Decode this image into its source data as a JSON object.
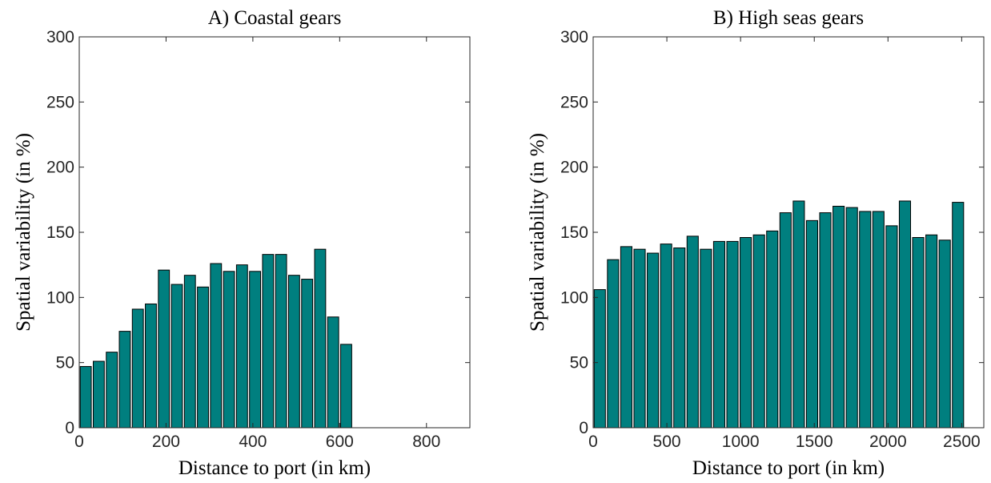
{
  "chart_data": [
    {
      "type": "bar",
      "title": "A) Coastal gears",
      "x_label": "Distance to port (in km)",
      "y_label": "Spatial variability (in %)",
      "x": [
        15,
        45,
        75,
        105,
        135,
        165,
        195,
        225,
        255,
        285,
        315,
        345,
        375,
        405,
        435,
        465,
        495,
        525,
        555,
        585,
        615
      ],
      "values": [
        47,
        51,
        58,
        74,
        91,
        95,
        121,
        110,
        117,
        108,
        126,
        120,
        125,
        120,
        133,
        133,
        117,
        114,
        137,
        85,
        64
      ],
      "color": "#007f7f",
      "xlim": [
        0,
        900
      ],
      "ylim": [
        0,
        300
      ],
      "xticks": [
        0,
        200,
        400,
        600,
        800
      ],
      "yticks": [
        0,
        50,
        100,
        150,
        200,
        250,
        300
      ]
    },
    {
      "type": "bar",
      "title": "B) High seas gears",
      "x_label": "Distance to port (in km)",
      "y_label": "Spatial variability (in %)",
      "x": [
        45,
        135,
        225,
        315,
        405,
        495,
        585,
        675,
        765,
        855,
        945,
        1035,
        1125,
        1215,
        1305,
        1395,
        1485,
        1575,
        1665,
        1755,
        1845,
        1935,
        2025,
        2115,
        2205,
        2295,
        2385,
        2475
      ],
      "values": [
        106,
        129,
        139,
        137,
        134,
        141,
        138,
        147,
        137,
        143,
        143,
        146,
        148,
        151,
        165,
        174,
        159,
        165,
        170,
        169,
        166,
        166,
        155,
        174,
        146,
        148,
        144,
        173
      ],
      "color": "#007f7f",
      "xlim": [
        0,
        2650
      ],
      "ylim": [
        0,
        300
      ],
      "xticks": [
        0,
        500,
        1000,
        1500,
        2000,
        2500
      ],
      "yticks": [
        0,
        50,
        100,
        150,
        200,
        250,
        300
      ]
    }
  ]
}
